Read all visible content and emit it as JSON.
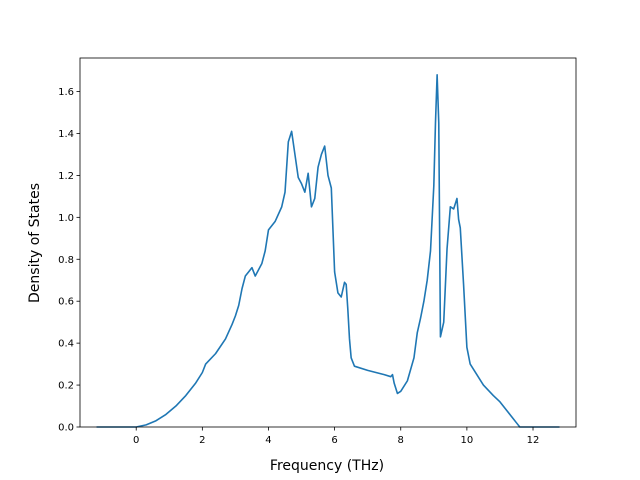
{
  "chart_data": {
    "type": "line",
    "title": "",
    "xlabel": "Frequency (THz)",
    "ylabel": "Density of States",
    "xlim": [
      -1.7,
      13.3
    ],
    "ylim": [
      0.0,
      1.76
    ],
    "xticks": [
      0,
      2,
      4,
      6,
      8,
      10,
      12
    ],
    "yticks": [
      0.0,
      0.2,
      0.4,
      0.6,
      0.8,
      1.0,
      1.2,
      1.4,
      1.6
    ],
    "xtick_labels": [
      "0",
      "2",
      "4",
      "6",
      "8",
      "10",
      "12"
    ],
    "ytick_labels": [
      "0.0",
      "0.2",
      "0.4",
      "0.6",
      "0.8",
      "1.0",
      "1.2",
      "1.4",
      "1.6"
    ],
    "grid": false,
    "color": "#1f77b4",
    "series": [
      {
        "x": [
          -1.2,
          -0.5,
          0.0,
          0.3,
          0.6,
          0.9,
          1.2,
          1.5,
          1.8,
          2.0,
          2.1,
          2.4,
          2.7,
          2.9,
          3.0,
          3.1,
          3.2,
          3.3,
          3.4,
          3.5,
          3.6,
          3.7,
          3.8,
          3.9,
          4.0,
          4.2,
          4.4,
          4.5,
          4.6,
          4.7,
          4.8,
          4.9,
          5.0,
          5.1,
          5.2,
          5.3,
          5.4,
          5.5,
          5.6,
          5.7,
          5.8,
          5.9,
          6.0,
          6.1,
          6.2,
          6.3,
          6.35,
          6.4,
          6.45,
          6.5,
          6.6,
          7.0,
          7.5,
          7.7,
          7.75,
          7.8,
          7.9,
          8.0,
          8.2,
          8.4,
          8.5,
          8.6,
          8.7,
          8.8,
          8.9,
          9.0,
          9.05,
          9.1,
          9.15,
          9.2,
          9.3,
          9.4,
          9.5,
          9.6,
          9.7,
          9.75,
          9.8,
          9.9,
          10.0,
          10.1,
          10.3,
          10.5,
          10.8,
          11.0,
          11.2,
          11.4,
          11.5,
          11.6,
          11.65,
          11.7,
          12.0,
          12.8
        ],
        "y": [
          0.0,
          0.0,
          0.0,
          0.01,
          0.03,
          0.06,
          0.1,
          0.15,
          0.21,
          0.26,
          0.3,
          0.35,
          0.42,
          0.49,
          0.53,
          0.58,
          0.66,
          0.72,
          0.74,
          0.76,
          0.72,
          0.75,
          0.78,
          0.84,
          0.94,
          0.98,
          1.05,
          1.12,
          1.36,
          1.41,
          1.3,
          1.19,
          1.16,
          1.12,
          1.21,
          1.05,
          1.09,
          1.24,
          1.3,
          1.34,
          1.2,
          1.14,
          0.74,
          0.64,
          0.62,
          0.69,
          0.68,
          0.56,
          0.42,
          0.33,
          0.29,
          0.27,
          0.25,
          0.24,
          0.25,
          0.21,
          0.16,
          0.17,
          0.22,
          0.33,
          0.45,
          0.52,
          0.6,
          0.7,
          0.84,
          1.15,
          1.45,
          1.68,
          1.45,
          0.43,
          0.5,
          0.85,
          1.05,
          1.04,
          1.09,
          0.99,
          0.95,
          0.68,
          0.38,
          0.3,
          0.25,
          0.2,
          0.15,
          0.12,
          0.08,
          0.04,
          0.02,
          0.0,
          0.0,
          0.0,
          0.0,
          0.0
        ]
      }
    ]
  }
}
